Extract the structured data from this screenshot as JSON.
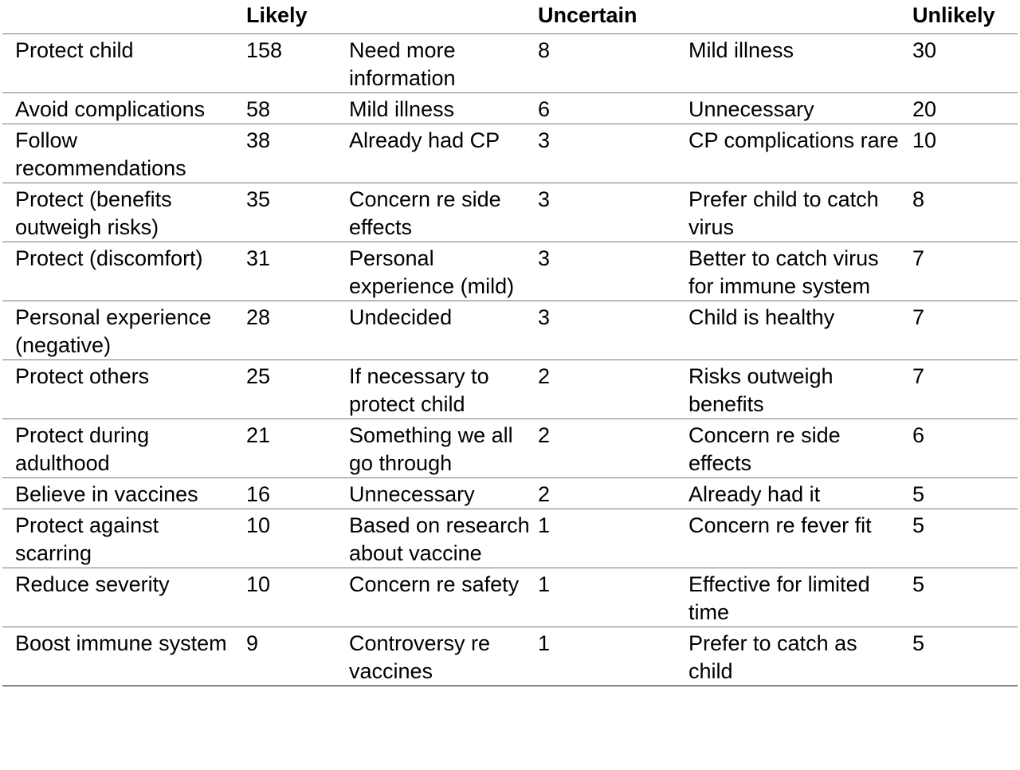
{
  "headers": {
    "likely": "Likely",
    "uncertain": "Uncertain",
    "unlikely": "Unlikely"
  },
  "rows": [
    {
      "likely_reason": "Protect child",
      "likely_count": "158",
      "uncertain_reason": "Need more information",
      "uncertain_count": "8",
      "unlikely_reason": "Mild illness",
      "unlikely_count": "30"
    },
    {
      "likely_reason": "Avoid complications",
      "likely_count": "58",
      "uncertain_reason": "Mild illness",
      "uncertain_count": "6",
      "unlikely_reason": "Unnecessary",
      "unlikely_count": "20"
    },
    {
      "likely_reason": "Follow recommendations",
      "likely_count": "38",
      "uncertain_reason": "Already had CP",
      "uncertain_count": "3",
      "unlikely_reason": "CP complications rare",
      "unlikely_count": "10"
    },
    {
      "likely_reason": "Protect (benefits outweigh risks)",
      "likely_count": "35",
      "uncertain_reason": "Concern re side effects",
      "uncertain_count": "3",
      "unlikely_reason": "Prefer child to catch virus",
      "unlikely_count": "8"
    },
    {
      "likely_reason": "Protect (discomfort)",
      "likely_count": "31",
      "uncertain_reason": "Personal experience (mild)",
      "uncertain_count": "3",
      "unlikely_reason": "Better to catch virus for immune system",
      "unlikely_count": "7"
    },
    {
      "likely_reason": "Personal experience (negative)",
      "likely_count": "28",
      "uncertain_reason": "Undecided",
      "uncertain_count": "3",
      "unlikely_reason": "Child is healthy",
      "unlikely_count": "7"
    },
    {
      "likely_reason": "Protect others",
      "likely_count": "25",
      "uncertain_reason": "If necessary to protect child",
      "uncertain_count": "2",
      "unlikely_reason": "Risks outweigh benefits",
      "unlikely_count": "7"
    },
    {
      "likely_reason": "Protect during adulthood",
      "likely_count": "21",
      "uncertain_reason": "Something we all go through",
      "uncertain_count": "2",
      "unlikely_reason": "Concern re side effects",
      "unlikely_count": "6"
    },
    {
      "likely_reason": "Believe in vaccines",
      "likely_count": "16",
      "uncertain_reason": "Unnecessary",
      "uncertain_count": "2",
      "unlikely_reason": "Already had it",
      "unlikely_count": "5"
    },
    {
      "likely_reason": "Protect against scarring",
      "likely_count": "10",
      "uncertain_reason": "Based on research about vaccine",
      "uncertain_count": "1",
      "unlikely_reason": "Concern re fever fit",
      "unlikely_count": "5"
    },
    {
      "likely_reason": "Reduce severity",
      "likely_count": "10",
      "uncertain_reason": "Concern re safety",
      "uncertain_count": "1",
      "unlikely_reason": "Effective for limited time",
      "unlikely_count": "5"
    },
    {
      "likely_reason": "Boost immune system",
      "likely_count": "9",
      "uncertain_reason": "Controversy re vaccines",
      "uncertain_count": "1",
      "unlikely_reason": "Prefer to catch as child",
      "unlikely_count": "5"
    }
  ]
}
